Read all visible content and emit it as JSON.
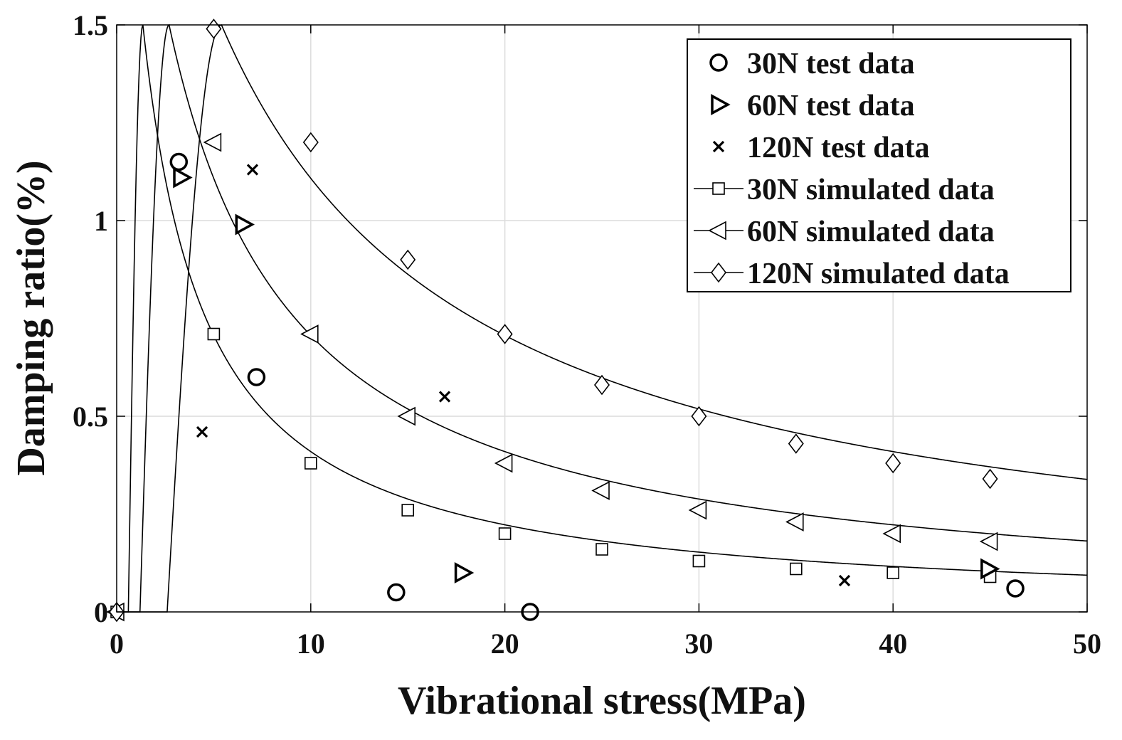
{
  "chart_data": {
    "type": "scatter",
    "title": "",
    "xlabel": "Vibrational stress(MPa)",
    "ylabel": "Damping ratio(%)",
    "xlim": [
      0,
      50
    ],
    "ylim": [
      0,
      1.5
    ],
    "xticks": [
      0,
      10,
      20,
      30,
      40,
      50
    ],
    "xtick_labels": [
      "0",
      "10",
      "20",
      "30",
      "40",
      "50"
    ],
    "yticks": [
      0,
      0.5,
      1,
      1.5
    ],
    "ytick_labels": [
      "0",
      "0.5",
      "1",
      "1.5"
    ],
    "grid": true,
    "legend_position": "top-right",
    "test_series": [
      {
        "name": "30N test data",
        "marker": "circle",
        "points": [
          [
            3.2,
            1.15
          ],
          [
            7.2,
            0.6
          ],
          [
            14.4,
            0.05
          ],
          [
            21.3,
            0.0
          ],
          [
            46.3,
            0.06
          ]
        ]
      },
      {
        "name": "60N test data",
        "marker": "triangle-right",
        "points": [
          [
            3.3,
            1.11
          ],
          [
            6.5,
            0.99
          ],
          [
            17.8,
            0.1
          ],
          [
            44.9,
            0.11
          ]
        ]
      },
      {
        "name": "120N test data",
        "marker": "x",
        "points": [
          [
            4.4,
            0.46
          ],
          [
            7.0,
            1.13
          ],
          [
            16.9,
            0.55
          ],
          [
            37.5,
            0.08
          ]
        ]
      }
    ],
    "simulated_series": [
      {
        "name": "30N simulated data",
        "marker": "square",
        "curve": {
          "peak_x": 1.35,
          "peak_y": 1.5,
          "start_x": 0.6,
          "decay_k": 1.9
        },
        "points": [
          [
            0,
            0.0
          ],
          [
            5,
            0.71
          ],
          [
            10,
            0.38
          ],
          [
            15,
            0.26
          ],
          [
            20,
            0.2
          ],
          [
            25,
            0.16
          ],
          [
            30,
            0.13
          ],
          [
            35,
            0.11
          ],
          [
            40,
            0.1
          ],
          [
            45,
            0.09
          ]
        ]
      },
      {
        "name": "60N simulated data",
        "marker": "triangle-left",
        "curve": {
          "peak_x": 2.7,
          "peak_y": 1.5,
          "start_x": 1.2,
          "decay_k": 3.8
        },
        "points": [
          [
            0,
            0.0
          ],
          [
            5,
            1.2
          ],
          [
            10,
            0.71
          ],
          [
            15,
            0.5
          ],
          [
            20,
            0.38
          ],
          [
            25,
            0.31
          ],
          [
            30,
            0.26
          ],
          [
            35,
            0.23
          ],
          [
            40,
            0.2
          ],
          [
            45,
            0.18
          ]
        ]
      },
      {
        "name": "120N simulated data",
        "marker": "diamond",
        "curve": {
          "peak_x": 5.4,
          "peak_y": 1.5,
          "start_x": 2.6,
          "decay_k": 7.6
        },
        "points": [
          [
            0,
            0.0
          ],
          [
            5,
            1.49
          ],
          [
            10,
            1.2
          ],
          [
            15,
            0.9
          ],
          [
            20,
            0.71
          ],
          [
            25,
            0.58
          ],
          [
            30,
            0.5
          ],
          [
            35,
            0.43
          ],
          [
            40,
            0.38
          ],
          [
            45,
            0.34
          ]
        ]
      }
    ]
  }
}
